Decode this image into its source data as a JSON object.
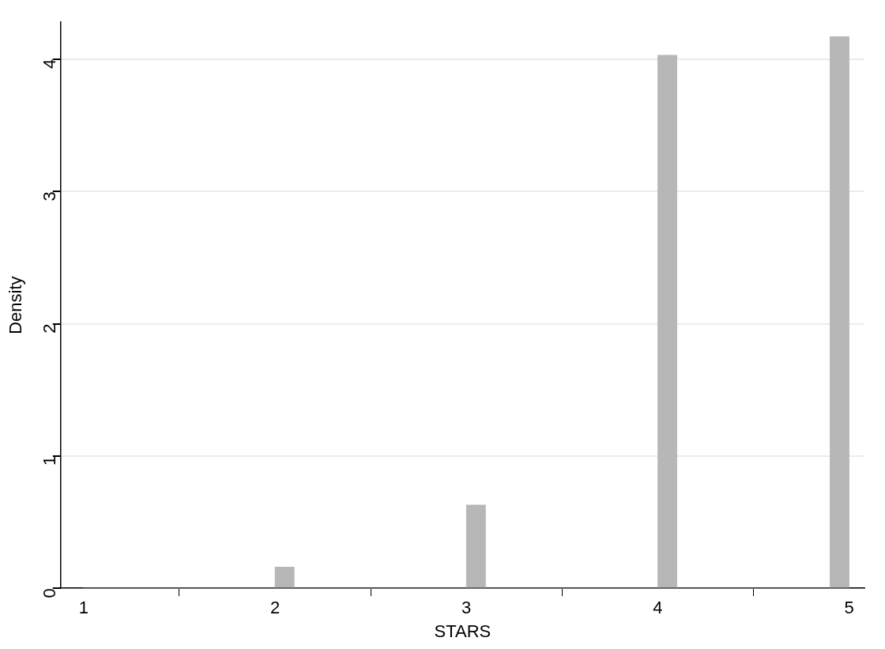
{
  "chart_data": {
    "type": "histogram",
    "xlabel": "STARS",
    "ylabel": "Density",
    "bins": [
      1,
      2,
      2.1,
      3,
      3.1,
      4,
      4.1,
      4.9,
      5
    ],
    "values": [
      0,
      0.16,
      0,
      0.63,
      0,
      4.03,
      0,
      4.17
    ],
    "color": "#b7b7b7",
    "xlim": [
      0.88,
      5.08
    ],
    "xticks": [
      1,
      2,
      3,
      4,
      5
    ],
    "ylim": [
      0,
      4.28
    ],
    "yticks": [
      0,
      1,
      2,
      3,
      4
    ],
    "grid": "y",
    "legend": false
  }
}
